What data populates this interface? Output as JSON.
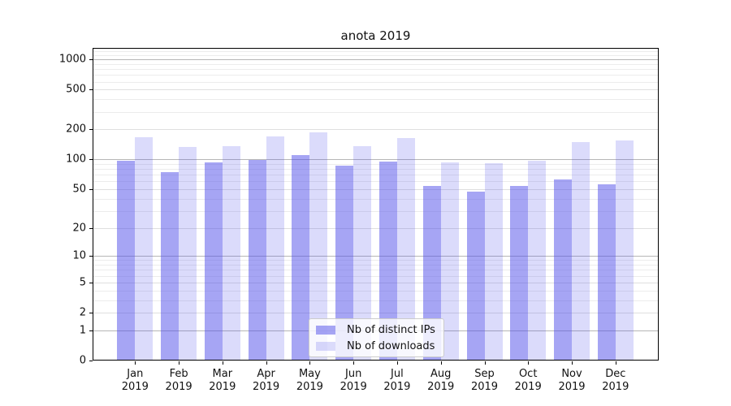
{
  "title": "anota 2019",
  "chart_data": {
    "type": "bar",
    "title": "anota 2019",
    "scale": "symlog",
    "grid": true,
    "legend_position": "lower center",
    "categories": [
      "Jan 2019",
      "Feb 2019",
      "Mar 2019",
      "Apr 2019",
      "May 2019",
      "Jun 2019",
      "Jul 2019",
      "Aug 2019",
      "Sep 2019",
      "Oct 2019",
      "Nov 2019",
      "Dec 2019"
    ],
    "series": [
      {
        "name": "Nb of distinct IPs",
        "fill": "rgba(77,75,234,0.50)",
        "values": [
          96,
          75,
          93,
          99,
          110,
          87,
          95,
          54,
          47,
          54,
          63,
          56
        ]
      },
      {
        "name": "Nb of downloads",
        "fill": "rgba(77,75,234,0.20)",
        "values": [
          168,
          132,
          137,
          170,
          187,
          137,
          164,
          94,
          92,
          97,
          149,
          154
        ]
      }
    ],
    "y_ticks": [
      0,
      1,
      2,
      5,
      10,
      20,
      50,
      100,
      200,
      500,
      1000
    ],
    "ylim": [
      0,
      1300
    ],
    "colors": {
      "bar_dark": "#a6a5f4",
      "bar_light": "#dbdbfb",
      "grid_major": "#b6b6b6",
      "grid_mid": "#dfdfdf",
      "grid_minor": "#ececec"
    }
  }
}
